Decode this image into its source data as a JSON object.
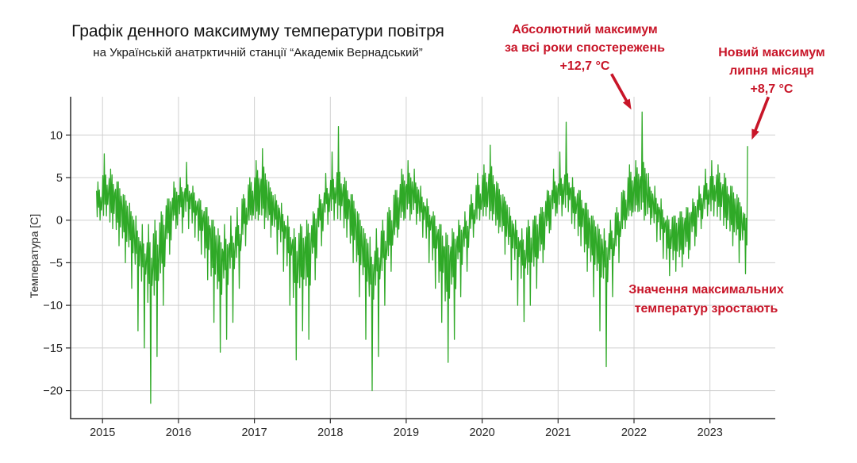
{
  "chart_data": {
    "type": "line",
    "title": "Графік денного максимуму температури повітря",
    "subtitle": "на Українській анатрктичній станції “Академік Вернадський”",
    "xlabel": "",
    "ylabel": "Температура [C]",
    "x_ticks": [
      2015,
      2016,
      2017,
      2018,
      2019,
      2020,
      2021,
      2022,
      2023
    ],
    "y_ticks": [
      10,
      5,
      0,
      -5,
      -10,
      -15,
      -20
    ],
    "xlim": [
      2014.58,
      2023.86
    ],
    "ylim": [
      -23.3,
      14.5
    ],
    "grid": true,
    "legend": false,
    "line_color": "#2fa927",
    "grid_color": "#d0d0d0",
    "axis_color": "#2b2b2b",
    "tick_label_color": "#262626",
    "annotation_color": "#c81528",
    "envelope_start": 2014.9167,
    "envelope_step": "1 month",
    "envelope_note": "per-month [min, max, typical] of daily maximum air temperature, Dec 2014 - Jun 2023, estimated from plot",
    "monthly_envelope": [
      [
        0,
        4.5,
        2
      ],
      [
        0.5,
        7.8,
        3
      ],
      [
        -1,
        6,
        2.5
      ],
      [
        -3,
        4.5,
        1.5
      ],
      [
        -5,
        3,
        0
      ],
      [
        -8,
        2,
        -1.5
      ],
      [
        -13,
        0.5,
        -3.5
      ],
      [
        -15,
        -0.5,
        -5
      ],
      [
        -21.5,
        -0.5,
        -6
      ],
      [
        -16,
        0,
        -5
      ],
      [
        -10,
        1,
        -3
      ],
      [
        -4,
        2.5,
        0
      ],
      [
        -1,
        4.5,
        1.5
      ],
      [
        -1.5,
        5,
        2
      ],
      [
        -1,
        6.8,
        2.5
      ],
      [
        -2,
        4,
        1.5
      ],
      [
        -4,
        2.5,
        0
      ],
      [
        -7,
        1.5,
        -1.5
      ],
      [
        -12,
        0,
        -3.5
      ],
      [
        -15.5,
        -1,
        -5.5
      ],
      [
        -14,
        -0.5,
        -5
      ],
      [
        -12,
        0.5,
        -4
      ],
      [
        -8,
        1.5,
        -2.5
      ],
      [
        -3,
        3,
        0.5
      ],
      [
        0,
        5,
        2
      ],
      [
        0,
        7,
        2.8
      ],
      [
        -1,
        8.4,
        3
      ],
      [
        -2,
        4.5,
        1.5
      ],
      [
        -4,
        3,
        0.5
      ],
      [
        -6,
        2,
        -1
      ],
      [
        -10,
        0.5,
        -3
      ],
      [
        -16.4,
        -1,
        -5.5
      ],
      [
        -13,
        -0.5,
        -4.5
      ],
      [
        -14,
        0,
        -4.5
      ],
      [
        -7,
        1,
        -2
      ],
      [
        -3,
        3,
        0.5
      ],
      [
        -0.5,
        5.5,
        2.2
      ],
      [
        0,
        8,
        3
      ],
      [
        0,
        11,
        3
      ],
      [
        -2,
        5,
        1.8
      ],
      [
        -5,
        3,
        0
      ],
      [
        -9,
        1,
        -2.5
      ],
      [
        -14,
        -1,
        -4.5
      ],
      [
        -20,
        -2,
        -7
      ],
      [
        -16,
        -1,
        -5.5
      ],
      [
        -10,
        0,
        -3.5
      ],
      [
        -6,
        1.5,
        -1.5
      ],
      [
        -2,
        3.5,
        0.8
      ],
      [
        0,
        6,
        2.5
      ],
      [
        0,
        7,
        3
      ],
      [
        -0.5,
        6,
        2.5
      ],
      [
        -2,
        4,
        1.2
      ],
      [
        -5,
        2.5,
        -0.2
      ],
      [
        -8,
        1,
        -2
      ],
      [
        -12,
        -0.5,
        -4
      ],
      [
        -16.7,
        -1.5,
        -6
      ],
      [
        -14,
        -1,
        -5
      ],
      [
        -9,
        0,
        -3
      ],
      [
        -6,
        1,
        -1.8
      ],
      [
        -2,
        3,
        0.5
      ],
      [
        0,
        5.5,
        2.2
      ],
      [
        0.5,
        6.5,
        3
      ],
      [
        0,
        8.8,
        3
      ],
      [
        -1.5,
        4.5,
        1.5
      ],
      [
        -4,
        3,
        0.3
      ],
      [
        -7,
        1.5,
        -1.5
      ],
      [
        -10,
        0,
        -3
      ],
      [
        -11.9,
        -1,
        -4.5
      ],
      [
        -10,
        0,
        -3.5
      ],
      [
        -8,
        0.5,
        -2.5
      ],
      [
        -5,
        1.5,
        -1.2
      ],
      [
        -1.5,
        3.5,
        1
      ],
      [
        0.5,
        6,
        2.6
      ],
      [
        0.5,
        8,
        3.2
      ],
      [
        1,
        11.5,
        3.5
      ],
      [
        -1,
        5,
        1.8
      ],
      [
        -3,
        3.5,
        0.8
      ],
      [
        -6,
        2,
        -1
      ],
      [
        -9,
        0.5,
        -2.5
      ],
      [
        -13,
        -0.5,
        -4
      ],
      [
        -17.2,
        -1,
        -5
      ],
      [
        -9,
        0,
        -3
      ],
      [
        -5,
        1.5,
        -1
      ],
      [
        -1,
        3.5,
        1.2
      ],
      [
        0.5,
        6.5,
        2.8
      ],
      [
        1,
        7,
        3.3
      ],
      [
        0,
        12.7,
        3.5
      ],
      [
        -0.5,
        5.5,
        2
      ],
      [
        -2.5,
        4,
        1
      ],
      [
        -4.5,
        2.5,
        -0.5
      ],
      [
        -6.5,
        0.5,
        -2.2
      ],
      [
        -6,
        0.5,
        -2
      ],
      [
        -5.5,
        1,
        -1.8
      ],
      [
        -4.5,
        1.5,
        -1.2
      ],
      [
        -3,
        2.5,
        0
      ],
      [
        -1,
        4,
        1.5
      ],
      [
        0.5,
        6,
        2.8
      ],
      [
        0.5,
        7,
        3.2
      ],
      [
        0,
        6.5,
        3
      ],
      [
        -1,
        5.5,
        2
      ],
      [
        -3,
        4,
        1
      ],
      [
        -5,
        3,
        0
      ],
      [
        -6.3,
        8.7,
        -1
      ]
    ],
    "notable_points": [
      {
        "t": 2022.09,
        "value": 12.7,
        "note": "абсолютний максимум за всі роки спостережень"
      },
      {
        "t": 2023.54,
        "value": 8.7,
        "note": "новий максимум липня місяця"
      }
    ],
    "annotations": [
      {
        "lines": [
          "Абсолютний максимум",
          "за всі роки спостережень",
          "+12,7 °C"
        ],
        "target_point": 0
      },
      {
        "lines": [
          "Новий максимум",
          "липня місяця",
          "+8,7 °C"
        ],
        "target_point": 1
      },
      {
        "lines": [
          "Значення максимальних",
          "температур зростають"
        ],
        "target_point": null
      }
    ]
  }
}
